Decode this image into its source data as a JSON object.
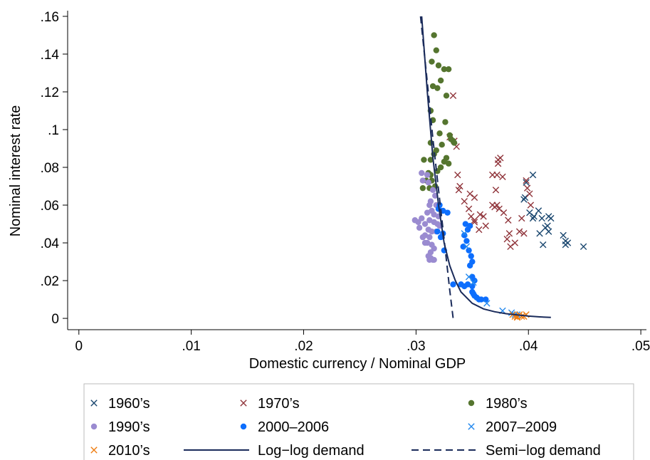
{
  "chart_data": {
    "type": "scatter",
    "xlabel": "Domestic currency / Nominal GDP",
    "ylabel": "Nominal interest rate",
    "xlim": [
      -0.001,
      0.0505
    ],
    "ylim": [
      -0.006,
      0.163
    ],
    "x_ticks": [
      0,
      0.01,
      0.02,
      0.03,
      0.04,
      0.05
    ],
    "x_tick_labels": [
      "0",
      ".01",
      ".02",
      ".03",
      ".04",
      ".05"
    ],
    "y_ticks": [
      0,
      0.02,
      0.04,
      0.06,
      0.08,
      0.1,
      0.12,
      0.14,
      0.16
    ],
    "y_tick_labels": [
      "0",
      ".02",
      ".04",
      ".06",
      ".08",
      ".1",
      ".12",
      ".14",
      ".16"
    ],
    "grid": false,
    "legend_position": "bottom",
    "series": [
      {
        "name": "1960’s",
        "marker": "x",
        "color": "#1a476f",
        "points": [
          [
            0.0404,
            0.076
          ],
          [
            0.0398,
            0.072
          ],
          [
            0.0396,
            0.063
          ],
          [
            0.0401,
            0.056
          ],
          [
            0.0404,
            0.053
          ],
          [
            0.0405,
            0.054
          ],
          [
            0.0409,
            0.057
          ],
          [
            0.0412,
            0.053
          ],
          [
            0.0418,
            0.054
          ],
          [
            0.042,
            0.053
          ],
          [
            0.041,
            0.045
          ],
          [
            0.0415,
            0.048
          ],
          [
            0.0418,
            0.046
          ],
          [
            0.0413,
            0.039
          ],
          [
            0.0417,
            0.049
          ],
          [
            0.0431,
            0.044
          ],
          [
            0.0433,
            0.041
          ],
          [
            0.0433,
            0.039
          ],
          [
            0.0435,
            0.04
          ],
          [
            0.0449,
            0.038
          ],
          [
            0.0397,
            0.064
          ]
        ]
      },
      {
        "name": "1970’s",
        "marker": "x",
        "color": "#90353b",
        "points": [
          [
            0.0333,
            0.118
          ],
          [
            0.033,
            0.096
          ],
          [
            0.0334,
            0.094
          ],
          [
            0.0336,
            0.091
          ],
          [
            0.0337,
            0.076
          ],
          [
            0.0339,
            0.07
          ],
          [
            0.0338,
            0.068
          ],
          [
            0.0343,
            0.062
          ],
          [
            0.0348,
            0.066
          ],
          [
            0.0352,
            0.064
          ],
          [
            0.0347,
            0.058
          ],
          [
            0.0349,
            0.054
          ],
          [
            0.0352,
            0.051
          ],
          [
            0.0357,
            0.055
          ],
          [
            0.036,
            0.054
          ],
          [
            0.0362,
            0.049
          ],
          [
            0.0356,
            0.047
          ],
          [
            0.0368,
            0.06
          ],
          [
            0.037,
            0.059
          ],
          [
            0.0372,
            0.06
          ],
          [
            0.0371,
            0.068
          ],
          [
            0.0368,
            0.076
          ],
          [
            0.0372,
            0.076
          ],
          [
            0.0373,
            0.084
          ],
          [
            0.0375,
            0.085
          ],
          [
            0.0373,
            0.082
          ],
          [
            0.0377,
            0.075
          ],
          [
            0.0374,
            0.058
          ],
          [
            0.0378,
            0.056
          ],
          [
            0.0382,
            0.052
          ],
          [
            0.0383,
            0.045
          ],
          [
            0.0381,
            0.042
          ],
          [
            0.0384,
            0.038
          ],
          [
            0.0388,
            0.04
          ],
          [
            0.0392,
            0.046
          ],
          [
            0.0396,
            0.045
          ],
          [
            0.0394,
            0.053
          ],
          [
            0.0399,
            0.069
          ],
          [
            0.0401,
            0.066
          ],
          [
            0.0402,
            0.06
          ],
          [
            0.0398,
            0.073
          ],
          [
            0.0352,
            0.052
          ]
        ]
      },
      {
        "name": "1980’s",
        "marker": "circle",
        "color": "#55752f",
        "points": [
          [
            0.0316,
            0.15
          ],
          [
            0.0318,
            0.142
          ],
          [
            0.0314,
            0.136
          ],
          [
            0.032,
            0.134
          ],
          [
            0.0325,
            0.132
          ],
          [
            0.0329,
            0.132
          ],
          [
            0.0322,
            0.126
          ],
          [
            0.0319,
            0.122
          ],
          [
            0.0315,
            0.123
          ],
          [
            0.0327,
            0.118
          ],
          [
            0.0313,
            0.11
          ],
          [
            0.0315,
            0.105
          ],
          [
            0.0326,
            0.104
          ],
          [
            0.0321,
            0.098
          ],
          [
            0.033,
            0.097
          ],
          [
            0.0331,
            0.095
          ],
          [
            0.0333,
            0.094
          ],
          [
            0.0334,
            0.093
          ],
          [
            0.0313,
            0.093
          ],
          [
            0.0318,
            0.089
          ],
          [
            0.0323,
            0.092
          ],
          [
            0.0316,
            0.087
          ],
          [
            0.0313,
            0.084
          ],
          [
            0.0327,
            0.085
          ],
          [
            0.0325,
            0.083
          ],
          [
            0.0329,
            0.082
          ],
          [
            0.0322,
            0.08
          ],
          [
            0.0319,
            0.078
          ],
          [
            0.0311,
            0.077
          ],
          [
            0.0313,
            0.076
          ],
          [
            0.0307,
            0.084
          ],
          [
            0.0314,
            0.073
          ],
          [
            0.0309,
            0.073
          ],
          [
            0.0317,
            0.07
          ],
          [
            0.0306,
            0.069
          ],
          [
            0.0312,
            0.069
          ]
        ]
      },
      {
        "name": "1990’s",
        "marker": "circle",
        "color": "#9a8bd0",
        "points": [
          [
            0.0305,
            0.077
          ],
          [
            0.031,
            0.076
          ],
          [
            0.0311,
            0.072
          ],
          [
            0.0306,
            0.073
          ],
          [
            0.0315,
            0.068
          ],
          [
            0.0317,
            0.065
          ],
          [
            0.0313,
            0.062
          ],
          [
            0.0312,
            0.06
          ],
          [
            0.0318,
            0.06
          ],
          [
            0.0314,
            0.057
          ],
          [
            0.032,
            0.058
          ],
          [
            0.0316,
            0.055
          ],
          [
            0.031,
            0.056
          ],
          [
            0.0305,
            0.053
          ],
          [
            0.0302,
            0.051
          ],
          [
            0.0299,
            0.052
          ],
          [
            0.0303,
            0.048
          ],
          [
            0.0308,
            0.05
          ],
          [
            0.0312,
            0.052
          ],
          [
            0.0316,
            0.051
          ],
          [
            0.0319,
            0.05
          ],
          [
            0.0321,
            0.049
          ],
          [
            0.0311,
            0.047
          ],
          [
            0.0314,
            0.046
          ],
          [
            0.0308,
            0.044
          ],
          [
            0.0318,
            0.046
          ],
          [
            0.0306,
            0.043
          ],
          [
            0.0312,
            0.043
          ],
          [
            0.031,
            0.04
          ],
          [
            0.0314,
            0.039
          ],
          [
            0.0316,
            0.037
          ],
          [
            0.0313,
            0.035
          ],
          [
            0.0311,
            0.033
          ],
          [
            0.0313,
            0.032
          ],
          [
            0.0315,
            0.031
          ],
          [
            0.0316,
            0.031
          ],
          [
            0.0312,
            0.031
          ],
          [
            0.0308,
            0.04
          ],
          [
            0.032,
            0.054
          ]
        ]
      },
      {
        "name": "2000–2006",
        "marker": "circle",
        "color": "#0d6efd",
        "points": [
          [
            0.0321,
            0.06
          ],
          [
            0.032,
            0.058
          ],
          [
            0.0324,
            0.057
          ],
          [
            0.0328,
            0.056
          ],
          [
            0.0324,
            0.045
          ],
          [
            0.0322,
            0.043
          ],
          [
            0.0319,
            0.046
          ],
          [
            0.0325,
            0.036
          ],
          [
            0.0344,
            0.05
          ],
          [
            0.0348,
            0.049
          ],
          [
            0.0346,
            0.047
          ],
          [
            0.0343,
            0.044
          ],
          [
            0.0345,
            0.041
          ],
          [
            0.0342,
            0.038
          ],
          [
            0.0347,
            0.036
          ],
          [
            0.0349,
            0.033
          ],
          [
            0.035,
            0.03
          ],
          [
            0.0348,
            0.028
          ],
          [
            0.035,
            0.022
          ],
          [
            0.0352,
            0.02
          ],
          [
            0.0346,
            0.018
          ],
          [
            0.0343,
            0.017
          ],
          [
            0.034,
            0.018
          ],
          [
            0.0333,
            0.018
          ],
          [
            0.035,
            0.017
          ],
          [
            0.035,
            0.014
          ],
          [
            0.0352,
            0.012
          ],
          [
            0.0354,
            0.011
          ],
          [
            0.0356,
            0.01
          ],
          [
            0.0358,
            0.01
          ],
          [
            0.0362,
            0.01
          ],
          [
            0.0351,
            0.013
          ]
        ]
      },
      {
        "name": "2007–2009",
        "marker": "x",
        "color": "#2288ee",
        "points": [
          [
            0.0343,
            0.045
          ],
          [
            0.0345,
            0.038
          ],
          [
            0.0347,
            0.022
          ],
          [
            0.0351,
            0.019
          ],
          [
            0.0363,
            0.008
          ],
          [
            0.0377,
            0.004
          ],
          [
            0.0385,
            0.003
          ],
          [
            0.0388,
            0.002
          ],
          [
            0.039,
            0.002
          ]
        ]
      },
      {
        "name": "2010’s",
        "marker": "x",
        "color": "#ee7d11",
        "points": [
          [
            0.0386,
            0.002
          ],
          [
            0.0388,
            0.001
          ],
          [
            0.039,
            0.001
          ],
          [
            0.0392,
            0.002
          ],
          [
            0.0394,
            0.001
          ],
          [
            0.0396,
            0.001
          ],
          [
            0.0398,
            0.002
          ],
          [
            0.039,
            0.0005
          ]
        ]
      },
      {
        "name": "Log−log demand",
        "marker": "line",
        "color": "#1a2b5a",
        "style": "solid",
        "points": [
          [
            0.0305,
            0.16
          ],
          [
            0.031,
            0.12
          ],
          [
            0.0315,
            0.085
          ],
          [
            0.032,
            0.06
          ],
          [
            0.0325,
            0.04
          ],
          [
            0.033,
            0.028
          ],
          [
            0.0335,
            0.02
          ],
          [
            0.034,
            0.014
          ],
          [
            0.035,
            0.008
          ],
          [
            0.036,
            0.005
          ],
          [
            0.037,
            0.0035
          ],
          [
            0.038,
            0.0025
          ],
          [
            0.039,
            0.0018
          ],
          [
            0.04,
            0.0012
          ],
          [
            0.041,
            0.0008
          ],
          [
            0.042,
            0.0005
          ]
        ]
      },
      {
        "name": "Semi−log demand",
        "marker": "line",
        "color": "#1a2b5a",
        "style": "dashed",
        "points": [
          [
            0.0304,
            0.16
          ],
          [
            0.031,
            0.125
          ],
          [
            0.0315,
            0.095
          ],
          [
            0.032,
            0.068
          ],
          [
            0.0325,
            0.042
          ],
          [
            0.033,
            0.015
          ],
          [
            0.0333,
            0.0
          ]
        ]
      }
    ]
  }
}
